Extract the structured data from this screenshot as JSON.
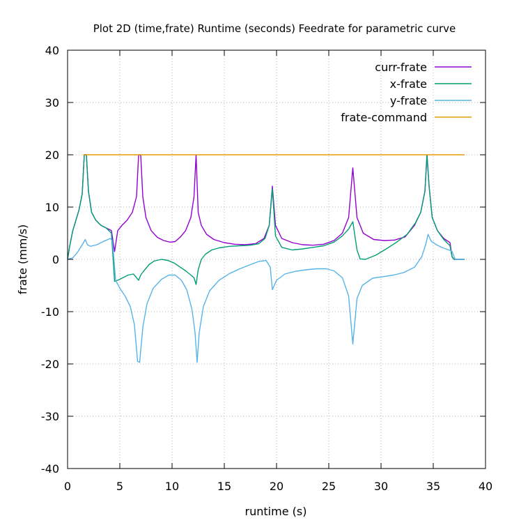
{
  "chart_data": {
    "type": "line",
    "title": "Plot 2D (time,frate) Runtime (seconds) Feedrate for parametric curve",
    "xlabel": "runtime (s)",
    "ylabel": "frate (mm/s)",
    "xlim": [
      0,
      40
    ],
    "ylim": [
      -40,
      40
    ],
    "xticks": [
      0,
      5,
      10,
      15,
      20,
      25,
      30,
      35,
      40
    ],
    "yticks": [
      -40,
      -30,
      -20,
      -10,
      0,
      10,
      20,
      30,
      40
    ],
    "grid": true,
    "legend_position": "top-right",
    "series": [
      {
        "name": "curr-frate",
        "color": "#9400d3",
        "x": [
          0,
          0.2,
          0.5,
          0.8,
          1.1,
          1.4,
          1.6,
          1.8,
          2.0,
          2.3,
          2.7,
          3.2,
          3.7,
          4.2,
          4.5,
          4.8,
          5.2,
          5.7,
          6.2,
          6.6,
          6.8,
          7.0,
          7.2,
          7.5,
          8.0,
          8.6,
          9.2,
          9.8,
          10.3,
          10.8,
          11.3,
          11.8,
          12.1,
          12.3,
          12.5,
          12.8,
          13.3,
          14.0,
          15.0,
          16.0,
          17.0,
          18.0,
          18.8,
          19.3,
          19.6,
          19.9,
          20.5,
          21.5,
          22.5,
          23.5,
          24.5,
          25.5,
          26.3,
          26.9,
          27.3,
          27.7,
          28.3,
          29.3,
          30.3,
          31.3,
          32.3,
          33.2,
          33.8,
          34.2,
          34.4,
          34.6,
          34.9,
          35.4,
          36.0,
          36.6,
          36.8,
          37.0,
          37.5,
          38.0
        ],
        "y": [
          0,
          2.5,
          5.5,
          7.5,
          9.5,
          12.5,
          20,
          20,
          13,
          9,
          7.5,
          6.5,
          6.0,
          5.5,
          1.5,
          5.5,
          6.5,
          7.5,
          9,
          12,
          20,
          20,
          12,
          8,
          5.5,
          4.2,
          3.6,
          3.3,
          3.4,
          4.3,
          5.5,
          8,
          12,
          20,
          9,
          6.5,
          4.8,
          3.8,
          3.2,
          2.9,
          2.8,
          3,
          4,
          6.5,
          14,
          6.5,
          4,
          3.2,
          2.8,
          2.7,
          2.9,
          3.6,
          5,
          8,
          17.5,
          8,
          5,
          3.8,
          3.6,
          3.7,
          4.3,
          6.5,
          9,
          13,
          20,
          14,
          8,
          5.5,
          4.0,
          3.2,
          0.5,
          0,
          0,
          0
        ]
      },
      {
        "name": "x-frate",
        "color": "#009e73",
        "x": [
          0,
          0.2,
          0.5,
          0.8,
          1.1,
          1.4,
          1.6,
          1.8,
          2.0,
          2.3,
          2.7,
          3.2,
          3.7,
          4.2,
          4.5,
          4.8,
          5.3,
          5.8,
          6.3,
          6.6,
          6.8,
          7.0,
          7.3,
          7.8,
          8.3,
          9.0,
          9.6,
          10.2,
          10.8,
          11.3,
          11.8,
          12.1,
          12.3,
          12.5,
          12.8,
          13.2,
          13.8,
          14.5,
          15.5,
          16.5,
          17.5,
          18.3,
          18.9,
          19.3,
          19.6,
          19.9,
          20.5,
          21.5,
          22.5,
          23.5,
          24.5,
          25.5,
          26.3,
          26.9,
          27.3,
          27.7,
          28.0,
          28.5,
          29.5,
          30.5,
          31.5,
          32.5,
          33.3,
          33.8,
          34.2,
          34.4,
          34.6,
          34.9,
          35.4,
          36.0,
          36.6,
          36.8,
          37.0,
          37.5,
          38.0
        ],
        "y": [
          0,
          2.5,
          5.5,
          7.5,
          9.5,
          12.5,
          20,
          20,
          13,
          9,
          7.5,
          6.5,
          6.0,
          5.0,
          -4.2,
          -4.0,
          -3.5,
          -3.0,
          -2.8,
          -3.5,
          -4.0,
          -3.0,
          -2.2,
          -1.0,
          -0.3,
          0,
          -0.2,
          -0.7,
          -1.5,
          -2.2,
          -3.0,
          -3.5,
          -4.8,
          -2,
          0,
          1.0,
          1.8,
          2.2,
          2.5,
          2.6,
          2.7,
          3,
          4,
          6.5,
          13.5,
          4.5,
          2.3,
          1.8,
          2.0,
          2.3,
          2.6,
          3.3,
          4.5,
          5.8,
          7.2,
          1.8,
          0.1,
          0,
          0.8,
          2.0,
          3.3,
          4.8,
          7,
          9,
          13,
          20,
          14,
          8,
          5.5,
          3.8,
          2.6,
          0.5,
          0,
          0,
          0
        ]
      },
      {
        "name": "y-frate",
        "color": "#56b4e9",
        "x": [
          0,
          0.5,
          1.0,
          1.4,
          1.7,
          1.9,
          2.2,
          2.8,
          3.5,
          4.1,
          4.3,
          4.6,
          5.0,
          5.5,
          6.0,
          6.4,
          6.7,
          6.9,
          7.2,
          7.6,
          8.2,
          9.0,
          9.7,
          10.3,
          10.9,
          11.4,
          11.9,
          12.2,
          12.4,
          12.6,
          13.0,
          13.6,
          14.5,
          15.5,
          16.5,
          17.5,
          18.3,
          19.0,
          19.4,
          19.6,
          20.0,
          20.8,
          21.8,
          22.8,
          23.8,
          24.8,
          25.5,
          26.3,
          26.9,
          27.3,
          27.7,
          28.2,
          29.2,
          30.2,
          31.2,
          32.2,
          33.2,
          33.9,
          34.3,
          34.5,
          34.8,
          35.3,
          35.9,
          36.5,
          36.8,
          37.1,
          37.5,
          38.0
        ],
        "y": [
          0,
          0.3,
          1.5,
          2.8,
          3.8,
          2.8,
          2.5,
          2.8,
          3.5,
          4.0,
          3.5,
          -4.0,
          -5.5,
          -7.0,
          -9.0,
          -12.5,
          -19.5,
          -19.7,
          -13.0,
          -8.5,
          -5.5,
          -3.8,
          -3.0,
          -3.0,
          -4.0,
          -5.8,
          -9.5,
          -14.0,
          -19.7,
          -14.0,
          -9.0,
          -6.0,
          -4.0,
          -2.7,
          -1.8,
          -1.0,
          -0.4,
          -0.2,
          -1.5,
          -5.8,
          -4.0,
          -2.8,
          -2.3,
          -2.0,
          -1.8,
          -1.8,
          -2.2,
          -3.5,
          -7.0,
          -16.2,
          -7.5,
          -5.0,
          -3.6,
          -3.3,
          -3.0,
          -2.5,
          -1.5,
          0.5,
          3.0,
          4.8,
          3.5,
          2.8,
          2.2,
          1.8,
          1.5,
          0,
          0,
          0
        ]
      },
      {
        "name": "frate-command",
        "color": "#e69f00",
        "x": [
          1.5,
          38.0
        ],
        "y": [
          20,
          20
        ]
      }
    ]
  }
}
